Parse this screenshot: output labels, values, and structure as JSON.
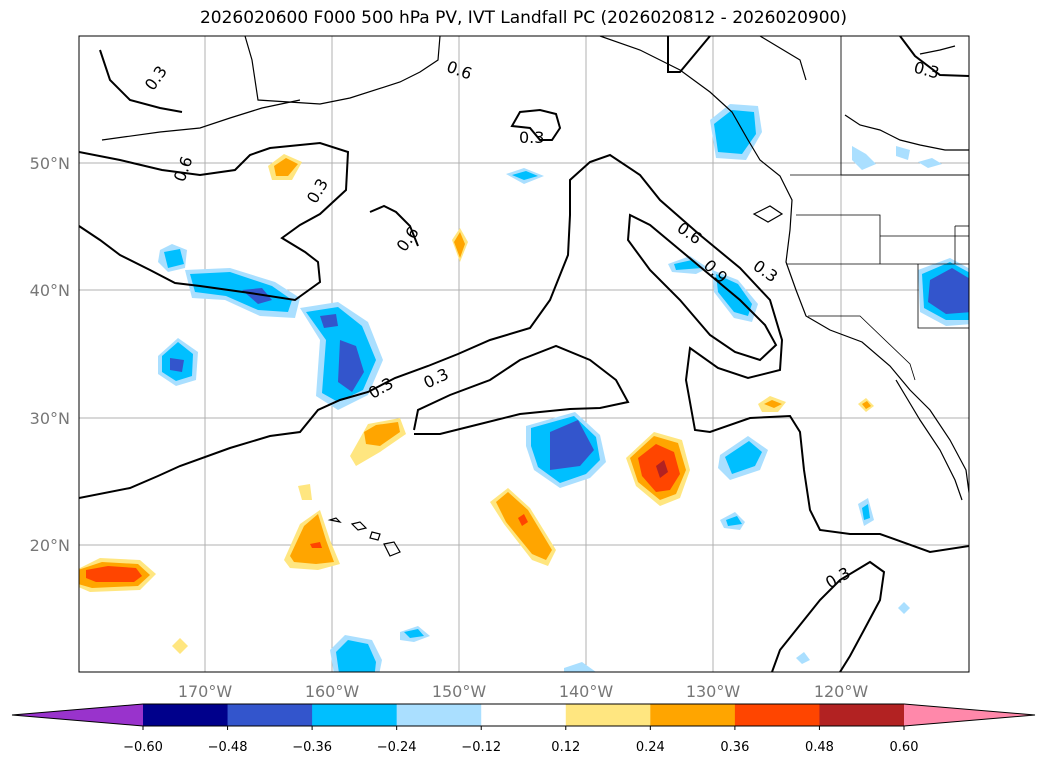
{
  "title": "2026020600 F000 500 hPa PV, IVT Landfall PC (2026020812 - 2026020900)",
  "lat_labels": [
    "50°N",
    "40°N",
    "30°N",
    "20°N"
  ],
  "lon_labels": [
    "170°W",
    "160°W",
    "150°W",
    "140°W",
    "130°W",
    "120°W"
  ],
  "contour_labels": [
    "0.3",
    "0.6",
    "0.3",
    "0.3",
    "0.3",
    "0.3",
    "0.6",
    "0.6",
    "0.6",
    "0.9",
    "0.3",
    "0.3",
    "0.3",
    "0.3",
    "0.6"
  ],
  "colorbar": {
    "ticks": [
      "−0.60",
      "−0.48",
      "−0.36",
      "−0.24",
      "−0.12",
      "0.12",
      "0.24",
      "0.36",
      "0.48",
      "0.60"
    ],
    "colors": [
      "#9933cc",
      "#00008b",
      "#3355cc",
      "#00bfff",
      "#aadfff",
      "#ffffff",
      "#ffe680",
      "#ffa500",
      "#ff4500",
      "#b22222",
      "#ff88aa"
    ]
  },
  "colors": {
    "pos_1": "#ffe680",
    "pos_2": "#ffa500",
    "pos_3": "#ff4500",
    "pos_4": "#b22222",
    "neg_1": "#aadfff",
    "neg_2": "#00bfff",
    "neg_3": "#3355cc",
    "neg_4": "#00008b"
  }
}
